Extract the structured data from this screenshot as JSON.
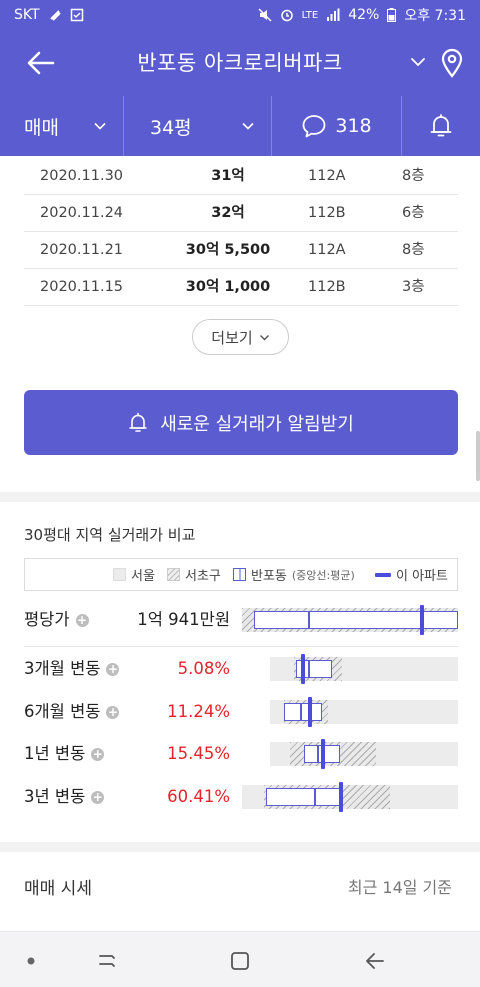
{
  "status_bar": {
    "carrier": "SKT",
    "battery": "42%",
    "time": "오후 7:31",
    "lte": "LTE"
  },
  "header": {
    "title": "반포동 아크로리버파크"
  },
  "tabs": {
    "trade_type": "매매",
    "size": "34평",
    "comment_count": "318"
  },
  "transactions": [
    {
      "date": "2020.11.30",
      "price": "31억",
      "type": "112A",
      "floor": "8층"
    },
    {
      "date": "2020.11.24",
      "price": "32억",
      "type": "112B",
      "floor": "6층"
    },
    {
      "date": "2020.11.21",
      "price": "30억 5,500",
      "type": "112A",
      "floor": "8층"
    },
    {
      "date": "2020.11.15",
      "price": "30억 1,000",
      "type": "112B",
      "floor": "3층"
    }
  ],
  "more_label": "더보기",
  "alert_button_label": "새로운 실거래가 알림받기",
  "comparison": {
    "title": "30평대 지역 실거래가 비교",
    "legend": {
      "seoul": "서울",
      "seocho": "서초구",
      "banpo": "반포동",
      "banpo_note": "(중앙선:평균)",
      "this_apt": "이 아파트"
    },
    "price_per_pyeong": {
      "label": "평당가",
      "value": "1억 941만원"
    },
    "changes": [
      {
        "label": "3개월 변동",
        "value": "5.08%"
      },
      {
        "label": "6개월 변동",
        "value": "11.24%"
      },
      {
        "label": "1년 변동",
        "value": "15.45%"
      },
      {
        "label": "3년 변동",
        "value": "60.41%"
      }
    ]
  },
  "market": {
    "title": "매매 시세",
    "basis": "최근 14일 기준"
  },
  "colors": {
    "brand": "#5a5cd0",
    "negative": "#e3242b"
  }
}
